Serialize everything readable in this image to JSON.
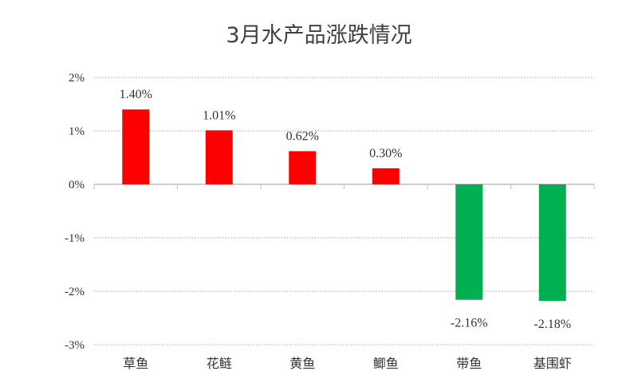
{
  "chart_data": {
    "type": "bar",
    "title": "3月水产品涨跌情况",
    "categories": [
      "草鱼",
      "花鲢",
      "黄鱼",
      "鲫鱼",
      "带鱼",
      "基围虾"
    ],
    "values": [
      1.4,
      1.01,
      0.62,
      0.3,
      -2.16,
      -2.18
    ],
    "data_labels": [
      "1.40%",
      "1.01%",
      "0.62%",
      "0.30%",
      "-2.16%",
      "-2.18%"
    ],
    "ylim": [
      -3,
      2
    ],
    "yticks": [
      2,
      1,
      0,
      -1,
      -2,
      -3
    ],
    "ytick_labels": [
      "2%",
      "1%",
      "0%",
      "-1%",
      "-2%",
      "-3%"
    ],
    "xlabel": "",
    "ylabel": "",
    "grid": true,
    "colors": {
      "positive": "#ff0000",
      "negative": "#00b050",
      "gridline": "#a6a6a6",
      "axis": "#bfbfbf"
    }
  }
}
